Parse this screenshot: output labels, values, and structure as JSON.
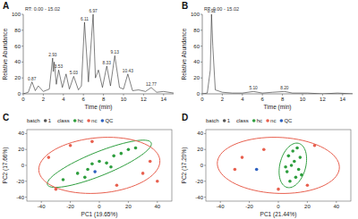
{
  "chart_data": [
    {
      "type": "line",
      "panel": "A",
      "title": "RT: 0.00 - 15.02",
      "x_label": "Time (min)",
      "y_label": "Relative Abundance",
      "xlim": [
        0,
        15
      ],
      "xticks": [
        0,
        2,
        4,
        6,
        8,
        10,
        12,
        14
      ],
      "ylim": [
        0,
        100
      ],
      "yticks": [
        0,
        20,
        40,
        60,
        80,
        100
      ],
      "grid": false,
      "series": [
        {
          "name": "A",
          "color": "#2b2b2b",
          "x": [
            0,
            0.5,
            0.87,
            1.2,
            1.5,
            2.0,
            2.6,
            2.93,
            3.0,
            3.09,
            3.3,
            3.53,
            3.9,
            4.27,
            4.6,
            5.03,
            5.5,
            5.8,
            6.11,
            6.5,
            6.97,
            7.2,
            7.5,
            7.9,
            8.33,
            8.7,
            9.13,
            9.6,
            10.0,
            10.43,
            10.9,
            11.5,
            12.2,
            12.77,
            13.3,
            14.0,
            15.0
          ],
          "values": [
            0,
            2,
            15,
            4,
            10,
            3,
            6,
            45,
            28,
            40,
            12,
            30,
            8,
            25,
            6,
            22,
            5,
            10,
            90,
            15,
            100,
            20,
            30,
            8,
            35,
            10,
            48,
            8,
            6,
            25,
            4,
            5,
            3,
            8,
            2,
            3,
            1
          ]
        }
      ],
      "annotations": [
        {
          "x": 0.87,
          "y": 15,
          "label": "0.87"
        },
        {
          "x": 2.93,
          "y": 45,
          "label": "2.93"
        },
        {
          "x": 3.53,
          "y": 30,
          "label": "3.53"
        },
        {
          "x": 5.03,
          "y": 22,
          "label": "5.03"
        },
        {
          "x": 6.11,
          "y": 90,
          "label": "6.11"
        },
        {
          "x": 6.97,
          "y": 100,
          "label": "6.97"
        },
        {
          "x": 8.33,
          "y": 35,
          "label": "8.33"
        },
        {
          "x": 9.13,
          "y": 48,
          "label": "9.13"
        },
        {
          "x": 10.43,
          "y": 25,
          "label": "10.43"
        },
        {
          "x": 12.77,
          "y": 8,
          "label": "12.77"
        }
      ]
    },
    {
      "type": "line",
      "panel": "B",
      "title": "RT: 0.00 - 15.02",
      "x_label": "Time (min)",
      "y_label": "Relative Abundance",
      "xlim": [
        0,
        15
      ],
      "xticks": [
        0,
        2,
        4,
        6,
        8,
        10,
        12,
        14
      ],
      "ylim": [
        0,
        100
      ],
      "yticks": [
        0,
        20,
        40,
        60,
        80,
        100
      ],
      "grid": false,
      "series": [
        {
          "name": "B",
          "color": "#2b2b2b",
          "x": [
            0,
            0.5,
            0.8,
            0.92,
            1.05,
            1.3,
            2.0,
            3.0,
            4.0,
            5.1,
            6.0,
            7.0,
            8.2,
            9.0,
            10.5,
            12.0,
            13.5,
            15.0
          ],
          "values": [
            0,
            1,
            30,
            100,
            60,
            5,
            2,
            1,
            1,
            3,
            1,
            2,
            3,
            1,
            1,
            0,
            1,
            0
          ]
        }
      ],
      "annotations": [
        {
          "x": 0.92,
          "y": 100,
          "label": "0.92"
        },
        {
          "x": 5.1,
          "y": 3,
          "label": "5.10"
        },
        {
          "x": 8.2,
          "y": 3,
          "label": "8.20"
        }
      ]
    },
    {
      "type": "scatter",
      "panel": "C",
      "x_label": "PC1 (19.65%)",
      "y_label": "PC2 (17.66%)",
      "xlim": [
        -50,
        50
      ],
      "xticks": [
        -40,
        -20,
        0,
        20,
        40
      ],
      "ylim": [
        -45,
        45
      ],
      "yticks": [
        -40,
        -20,
        0,
        20,
        40
      ],
      "grid": false,
      "legend": "top",
      "batch": {
        "title": "batch",
        "levels": [
          "1"
        ]
      },
      "class_title": "class",
      "series": [
        {
          "name": "hc",
          "color": "#2e9e3e",
          "marker": "circle",
          "x": [
            -25,
            -15,
            -8,
            -5,
            0,
            5,
            10,
            15,
            20,
            -10,
            8,
            25
          ],
          "values": [
            -18,
            -10,
            -5,
            2,
            5,
            3,
            12,
            15,
            20,
            -15,
            -2,
            22
          ]
        },
        {
          "name": "nc",
          "color": "#e8604f",
          "marker": "circle",
          "x": [
            -35,
            -30,
            30,
            35,
            -20,
            12,
            -5,
            40
          ],
          "values": [
            10,
            -30,
            -10,
            5,
            25,
            -25,
            30,
            -20
          ]
        },
        {
          "name": "QC",
          "color": "#2f62c0",
          "marker": "circle",
          "x": [
            -3
          ],
          "values": [
            -8
          ]
        }
      ],
      "ellipses": [
        {
          "color": "#2e9e3e",
          "center": [
            0,
            2
          ],
          "axis1": [
            35,
            28
          ],
          "axis2": [
            -8,
            10
          ]
        },
        {
          "color": "#e8604f",
          "center": [
            0,
            0
          ],
          "axis1": [
            40,
            15
          ],
          "axis2": [
            -12,
            32
          ]
        }
      ]
    },
    {
      "type": "scatter",
      "panel": "D",
      "x_label": "PC1 (21.44%)",
      "y_label": "PC2 (17.20%)",
      "xlim": [
        -50,
        50
      ],
      "xticks": [
        -40,
        -20,
        0,
        20,
        40
      ],
      "ylim": [
        -45,
        45
      ],
      "yticks": [
        -40,
        -20,
        0,
        20,
        40
      ],
      "grid": false,
      "legend": "top",
      "batch": {
        "title": "batch",
        "levels": [
          "1"
        ]
      },
      "class_title": "class",
      "series": [
        {
          "name": "hc",
          "color": "#2e9e3e",
          "marker": "circle",
          "x": [
            8,
            12,
            6,
            14,
            9,
            11,
            15,
            7,
            10,
            13,
            5,
            16
          ],
          "values": [
            -20,
            -15,
            -8,
            -5,
            0,
            5,
            10,
            12,
            18,
            22,
            -2,
            -12
          ]
        },
        {
          "name": "nc",
          "color": "#e8604f",
          "marker": "circle",
          "x": [
            -25,
            -30,
            25,
            -10,
            20,
            0
          ],
          "values": [
            10,
            -5,
            25,
            20,
            -25,
            -30
          ]
        },
        {
          "name": "QC",
          "color": "#2f62c0",
          "marker": "circle",
          "x": [
            -15
          ],
          "values": [
            -5
          ]
        }
      ],
      "ellipses": [
        {
          "color": "#2e9e3e",
          "center": [
            10,
            0
          ],
          "axis1": [
            3,
            28
          ],
          "axis2": [
            9,
            -1
          ]
        },
        {
          "color": "#e8604f",
          "center": [
            0,
            0
          ],
          "axis1": [
            42,
            -5
          ],
          "axis2": [
            3,
            35
          ]
        }
      ]
    }
  ]
}
